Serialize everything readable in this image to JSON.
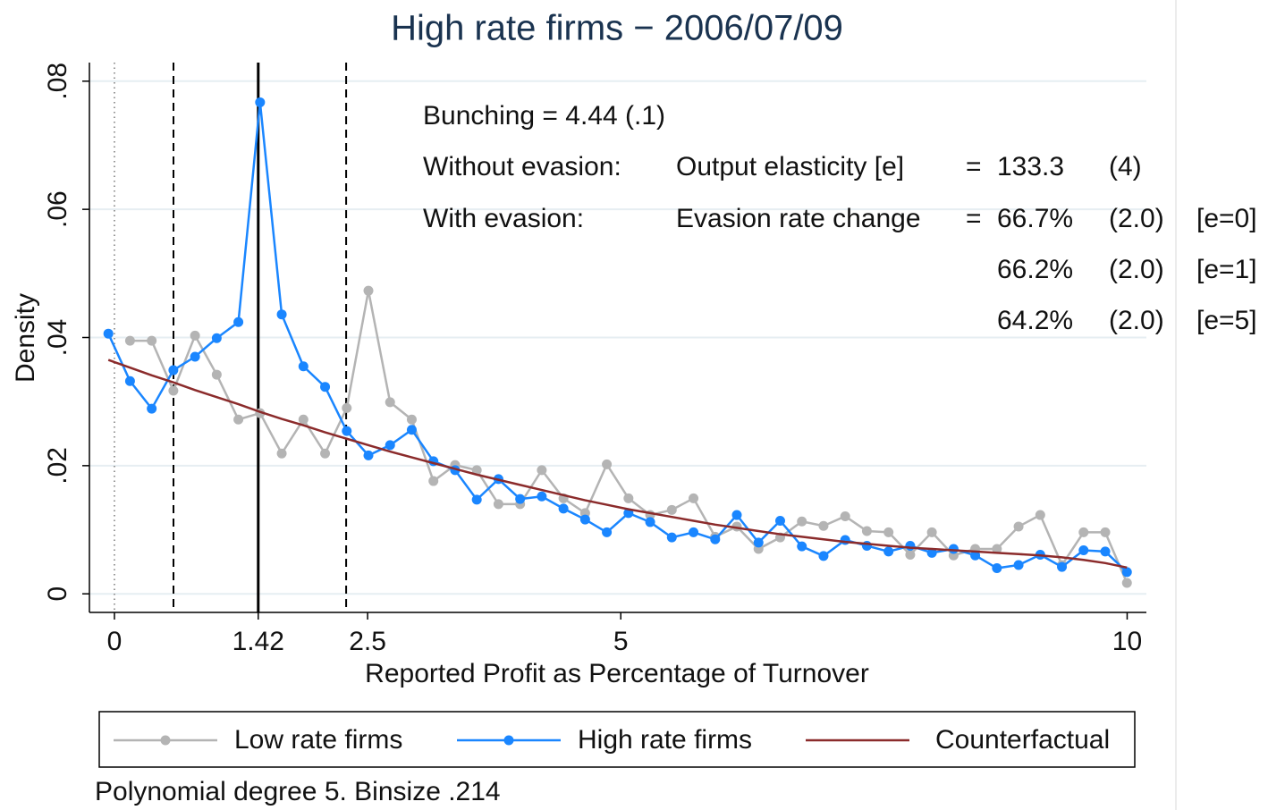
{
  "chart_data": {
    "type": "line",
    "title": "High rate firms − 2006/07/09",
    "x_label": "Reported Profit as Percentage of Turnover",
    "y_label": "Density",
    "note": "Polynomial degree 5. Binsize .214",
    "xlim": [
      -0.247,
      10.19
    ],
    "ylim": [
      -0.0029,
      0.0829
    ],
    "xticks": [
      0,
      1.42,
      2.5,
      5,
      10
    ],
    "yticks": [
      0,
      {
        "value": 0.02,
        "label": ".02"
      },
      {
        "value": 0.04,
        "label": ".04"
      },
      {
        "value": 0.06,
        "label": ".06"
      },
      {
        "value": 0.08,
        "label": ".08"
      }
    ],
    "grid": true,
    "reference_lines": [
      {
        "x": 0,
        "style": "dotted"
      },
      {
        "x": 0.583,
        "style": "dashed"
      },
      {
        "x": 1.42,
        "style": "solid"
      },
      {
        "x": 2.288,
        "style": "dashed"
      }
    ],
    "annotation_rows": [
      [
        "Bunching = 4.44 (.1)"
      ],
      [
        "Without evasion:",
        "Output elasticity [e]",
        "=",
        "133.3",
        "(4)"
      ],
      [
        "With evasion:",
        "Evasion rate change",
        "=",
        "66.7%",
        "(2.0)",
        "[e=0]"
      ],
      [
        "66.2%",
        "(2.0)",
        "[e=1]"
      ],
      [
        "64.2%",
        "(2.0)",
        "[e=5]"
      ]
    ],
    "x": [
      -0.06,
      0.154,
      0.368,
      0.582,
      0.796,
      1.01,
      1.224,
      1.438,
      1.652,
      1.866,
      2.08,
      2.294,
      2.508,
      2.722,
      2.936,
      3.15,
      3.364,
      3.578,
      3.792,
      4.006,
      4.22,
      4.434,
      4.648,
      4.862,
      5.076,
      5.29,
      5.504,
      5.718,
      5.932,
      6.146,
      6.36,
      6.574,
      6.788,
      7.002,
      7.216,
      7.43,
      7.644,
      7.858,
      8.072,
      8.286,
      8.5,
      8.714,
      8.928,
      9.142,
      9.356,
      9.57,
      9.784,
      9.998
    ],
    "series": [
      {
        "name": "Low rate firms",
        "color": "#b4b4b4",
        "markers": true,
        "values": [
          null,
          0.0395,
          0.0395,
          0.0317,
          0.0403,
          0.0342,
          0.0272,
          0.0282,
          0.0219,
          0.0272,
          0.0219,
          0.029,
          0.0473,
          0.0299,
          0.0272,
          0.0176,
          0.0201,
          0.0193,
          0.014,
          0.014,
          0.0193,
          0.0149,
          0.0126,
          0.0202,
          0.0149,
          0.0123,
          0.0131,
          0.0149,
          0.0089,
          0.0105,
          0.007,
          0.0088,
          0.0113,
          0.0106,
          0.0121,
          0.0098,
          0.0096,
          0.0061,
          0.0096,
          0.006,
          0.007,
          0.007,
          0.0105,
          0.0123,
          0.0045,
          0.0096,
          0.0096,
          0.0017
        ]
      },
      {
        "name": "High rate firms",
        "color": "#1a86ff",
        "markers": true,
        "values": [
          0.0406,
          0.0332,
          0.0289,
          0.0349,
          0.037,
          0.0399,
          0.0424,
          0.0767,
          0.0436,
          0.0355,
          0.0323,
          0.0254,
          0.0216,
          0.0232,
          0.0256,
          0.0207,
          0.0193,
          0.0147,
          0.0179,
          0.0148,
          0.0152,
          0.0133,
          0.0116,
          0.0096,
          0.0126,
          0.0112,
          0.0088,
          0.0096,
          0.0085,
          0.0123,
          0.008,
          0.0114,
          0.0074,
          0.0059,
          0.0084,
          0.0075,
          0.0066,
          0.0075,
          0.0064,
          0.007,
          0.006,
          0.004,
          0.0045,
          0.0061,
          0.0042,
          0.0068,
          0.0066,
          0.0034
        ]
      },
      {
        "name": "Counterfactual",
        "color": "#8b2b2b",
        "markers": false,
        "values": [
          0.0365,
          0.0353,
          0.0341,
          0.033,
          0.0318,
          0.0307,
          0.0296,
          0.0284,
          0.0273,
          0.0263,
          0.0252,
          0.0242,
          0.0232,
          0.0222,
          0.0213,
          0.0204,
          0.0195,
          0.0186,
          0.0178,
          0.017,
          0.0162,
          0.0154,
          0.0146,
          0.0139,
          0.0132,
          0.0126,
          0.012,
          0.0114,
          0.0108,
          0.0103,
          0.0098,
          0.0093,
          0.0089,
          0.0085,
          0.0081,
          0.0078,
          0.0075,
          0.0072,
          0.007,
          0.0068,
          0.0066,
          0.0064,
          0.0062,
          0.006,
          0.0057,
          0.0053,
          0.0048,
          0.0041
        ]
      }
    ]
  }
}
